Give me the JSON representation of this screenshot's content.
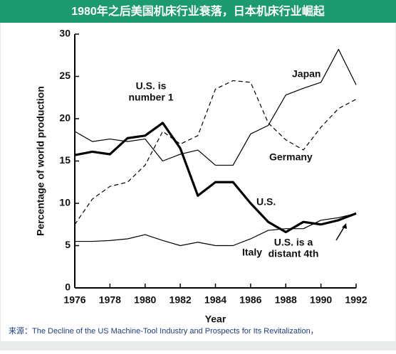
{
  "header": {
    "title": "1980年之后美国机床行业衰落，日本机床行业崛起"
  },
  "source": "来源：The Decline of the US Machine-Tool Industry and Prospects for Its Revitalization，",
  "chart_data": {
    "type": "line",
    "xlabel": "Year",
    "ylabel": "Percentage of world production",
    "x": [
      1976,
      1977,
      1978,
      1979,
      1980,
      1981,
      1982,
      1983,
      1984,
      1985,
      1986,
      1987,
      1988,
      1989,
      1990,
      1991,
      1992
    ],
    "series": [
      {
        "name": "Japan",
        "color": "#000000",
        "style": "thin",
        "values": [
          18.5,
          17.3,
          17.6,
          17.3,
          17.6,
          15,
          15.8,
          16.3,
          14.5,
          14.5,
          18.2,
          19.2,
          22.8,
          23.6,
          24.3,
          28.2,
          24
        ]
      },
      {
        "name": "Germany",
        "color": "#000000",
        "style": "dashed",
        "values": [
          7.5,
          10.5,
          12,
          12.5,
          14.5,
          18.5,
          17,
          18,
          23.5,
          24.5,
          24.3,
          19.5,
          17.5,
          16.3,
          19,
          21.2,
          22.3
        ]
      },
      {
        "name": "U.S.",
        "color": "#000000",
        "style": "thick",
        "values": [
          15.7,
          16.1,
          15.8,
          17.7,
          18,
          19.5,
          16.5,
          10.9,
          12.5,
          12.5,
          10,
          7.8,
          6.6,
          7.8,
          7.5,
          8,
          8.8
        ]
      },
      {
        "name": "Italy",
        "color": "#000000",
        "style": "thin",
        "values": [
          5.5,
          5.5,
          5.6,
          5.8,
          6.3,
          5.6,
          5,
          5.4,
          5,
          5,
          5.8,
          6.8,
          7,
          7,
          8,
          8.3,
          8.8
        ]
      }
    ],
    "annotations": [
      [
        "U.S. is",
        "number 1"
      ],
      [
        "U.S. is a",
        "distant 4th"
      ]
    ],
    "xlim": [
      1976,
      1992
    ],
    "ylim": [
      0,
      30
    ],
    "xticks": [
      1976,
      1978,
      1980,
      1982,
      1984,
      1986,
      1988,
      1990,
      1992
    ],
    "yticks": [
      0,
      5,
      10,
      15,
      20,
      25,
      30
    ]
  }
}
